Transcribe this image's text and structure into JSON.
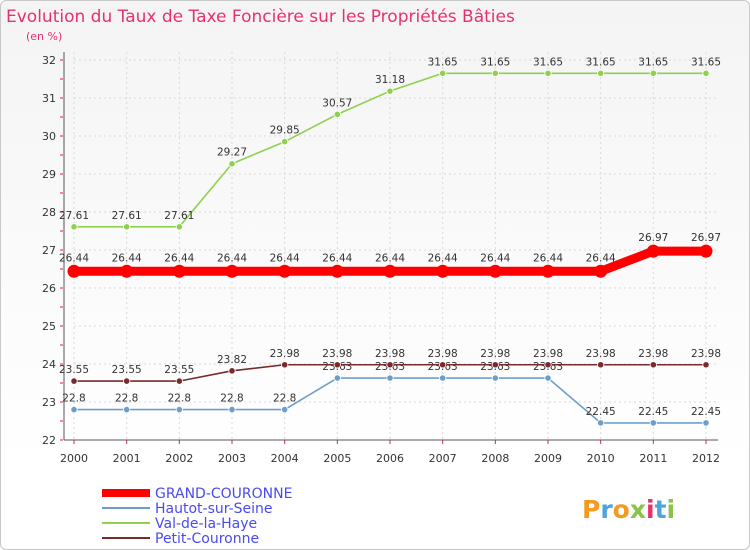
{
  "chart_data": {
    "type": "line",
    "title": "Evolution du Taux de Taxe Foncière sur les Propriétés Bâties",
    "subtitle": "(en %)",
    "xlabel": "",
    "ylabel": "",
    "categories": [
      "2000",
      "2001",
      "2002",
      "2003",
      "2004",
      "2005",
      "2006",
      "2007",
      "2008",
      "2009",
      "2010",
      "2011",
      "2012"
    ],
    "ylim": [
      22,
      32
    ],
    "yticks": [
      22,
      23,
      24,
      25,
      26,
      27,
      28,
      29,
      30,
      31,
      32
    ],
    "series": [
      {
        "name": "GRAND-COURONNE",
        "color": "#ff0000",
        "values": [
          26.44,
          26.44,
          26.44,
          26.44,
          26.44,
          26.44,
          26.44,
          26.44,
          26.44,
          26.44,
          26.44,
          26.97,
          26.97
        ],
        "labels": [
          "26.44",
          "26.44",
          "26.44",
          "26.44",
          "26.44",
          "26.44",
          "26.44",
          "26.44",
          "26.44",
          "26.44",
          "26.44",
          "26.97",
          "26.97"
        ],
        "bold": true
      },
      {
        "name": "Hautot-sur-Seine",
        "color": "#6d9ecb",
        "values": [
          22.8,
          22.8,
          22.8,
          22.8,
          22.8,
          23.63,
          23.63,
          23.63,
          23.63,
          23.63,
          22.45,
          22.45,
          22.45
        ],
        "labels": [
          "22.8",
          "22.8",
          "22.8",
          "22.8",
          "22.8",
          "23.63",
          "23.63",
          "23.63",
          "23.63",
          "23.63",
          "22.45",
          "22.45",
          "22.45"
        ],
        "bold": false
      },
      {
        "name": "Val-de-la-Haye",
        "color": "#8fd14f",
        "values": [
          27.61,
          27.61,
          27.61,
          29.27,
          29.85,
          30.57,
          31.18,
          31.65,
          31.65,
          31.65,
          31.65,
          31.65,
          31.65
        ],
        "labels": [
          "27.61",
          "27.61",
          "27.61",
          "29.27",
          "29.85",
          "30.57",
          "31.18",
          "31.65",
          "31.65",
          "31.65",
          "31.65",
          "31.65",
          "31.65"
        ],
        "bold": false
      },
      {
        "name": "Petit-Couronne",
        "color": "#7a2a2a",
        "values": [
          23.55,
          23.55,
          23.55,
          23.82,
          23.98,
          23.98,
          23.98,
          23.98,
          23.98,
          23.98,
          23.98,
          23.98,
          23.98
        ],
        "labels": [
          "23.55",
          "23.55",
          "23.55",
          "23.82",
          "23.98",
          "23.98",
          "23.98",
          "23.98",
          "23.98",
          "23.98",
          "23.98",
          "23.98",
          "23.98"
        ],
        "bold": false
      }
    ],
    "legend": "bottom-left"
  },
  "branding": {
    "logo_text": "Proxiti"
  }
}
